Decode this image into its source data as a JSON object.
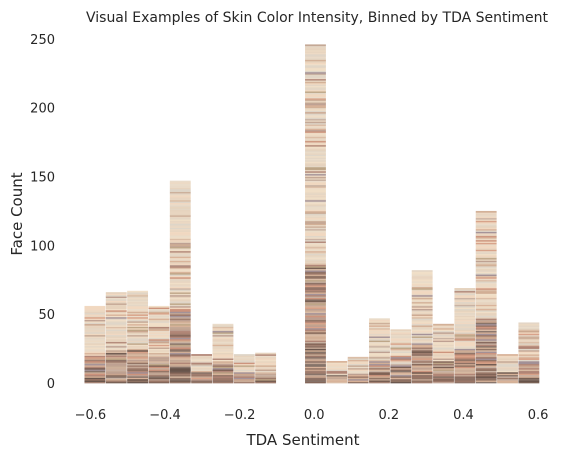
{
  "chart_data": {
    "type": "bar",
    "title": "Visual Examples of Skin Color Intensity, Binned by TDA Sentiment",
    "xlabel": "TDA Sentiment",
    "ylabel": "Face Count",
    "xlim": [
      -0.66,
      0.64
    ],
    "ylim": [
      0,
      255
    ],
    "xticks": [
      -0.6,
      -0.4,
      -0.2,
      0.0,
      0.2,
      0.4,
      0.6
    ],
    "xtick_labels": [
      "−0.6",
      "−0.4",
      "−0.2",
      "0.0",
      "0.2",
      "0.4",
      "0.6"
    ],
    "yticks": [
      0,
      50,
      100,
      150,
      200,
      250
    ],
    "ytick_labels": [
      "0",
      "50",
      "100",
      "150",
      "200",
      "250"
    ],
    "grid": false,
    "bin_width": 0.0572,
    "bins": [
      {
        "center": -0.5872,
        "value": 56
      },
      {
        "center": -0.53,
        "value": 66
      },
      {
        "center": -0.4728,
        "value": 67
      },
      {
        "center": -0.4156,
        "value": 56
      },
      {
        "center": -0.3584,
        "value": 147
      },
      {
        "center": -0.3012,
        "value": 21
      },
      {
        "center": -0.244,
        "value": 43
      },
      {
        "center": -0.1868,
        "value": 21
      },
      {
        "center": -0.1296,
        "value": 22
      },
      {
        "center": 0.004,
        "value": 246
      },
      {
        "center": 0.0612,
        "value": 16
      },
      {
        "center": 0.1184,
        "value": 19
      },
      {
        "center": 0.1756,
        "value": 47
      },
      {
        "center": 0.2328,
        "value": 39
      },
      {
        "center": 0.29,
        "value": 82
      },
      {
        "center": 0.3472,
        "value": 43
      },
      {
        "center": 0.4044,
        "value": 69
      },
      {
        "center": 0.4616,
        "value": 125
      },
      {
        "center": 0.5188,
        "value": 21
      },
      {
        "center": 0.576,
        "value": 44
      }
    ],
    "palette": {
      "pale": [
        "#e8d9c6",
        "#ecd7c0",
        "#e2d4c1",
        "#efdcc3",
        "#e6d2bd",
        "#dcd2c4",
        "#f0d6bd",
        "#e4cfb8"
      ],
      "mid": [
        "#d8b8a0",
        "#c9a992",
        "#d6ae92",
        "#bfa18d",
        "#c7a087",
        "#b8998a",
        "#cfaa8f",
        "#c4ad9c"
      ],
      "dark": [
        "#8a6a5a",
        "#7a5a4c",
        "#9a7565",
        "#6e5447",
        "#85675a",
        "#956f5e",
        "#7f6a60",
        "#5f4a40"
      ],
      "accent": [
        "#c98c73",
        "#ab7e6e",
        "#d59b80",
        "#b9a07f",
        "#9c8a90"
      ]
    }
  }
}
